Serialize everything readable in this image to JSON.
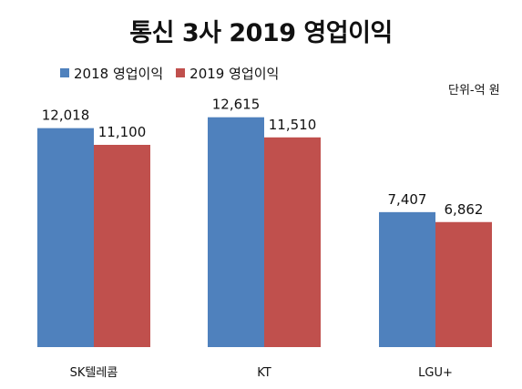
{
  "title": "통신 3사 2019 영업이익",
  "unit_note": "단위-억 원",
  "colors": {
    "series_2018": "#4f81bd",
    "series_2019": "#c0504d"
  },
  "chart_data": {
    "type": "bar",
    "title": "통신 3사 2019 영업이익",
    "categories": [
      "SK텔레콤",
      "KT",
      "LGU+"
    ],
    "series": [
      {
        "name": "2018 영업이익",
        "values": [
          12018,
          12615,
          7407
        ],
        "labels": [
          "12,018",
          "12,615",
          "7,407"
        ]
      },
      {
        "name": "2019 영업이익",
        "values": [
          11100,
          11510,
          6862
        ],
        "labels": [
          "11,100",
          "11,510",
          "6,862"
        ]
      }
    ],
    "ylim": [
      0,
      15000
    ],
    "grid": false,
    "legend_position": "top-left",
    "data_labels": true
  }
}
